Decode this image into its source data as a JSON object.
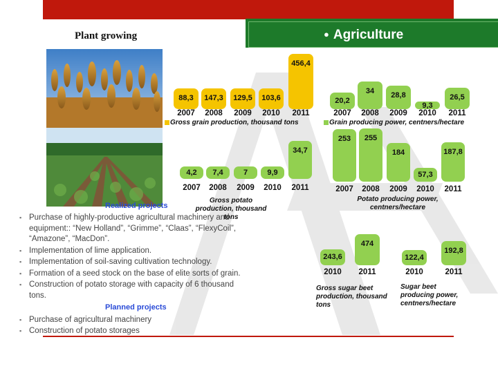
{
  "header": {
    "section_title": "Agriculture",
    "plant_title": "Plant growing",
    "bullet_icon": "●"
  },
  "colors": {
    "header_red": "#c0180c",
    "header_green": "#1d7a2a",
    "yellow_bar": "#f5c400",
    "green_bar": "#92d050",
    "link_blue": "#2a4bd7"
  },
  "chart_data": [
    {
      "id": "grain_gross",
      "type": "bar",
      "categories": [
        "2007",
        "2008",
        "2009",
        "2010",
        "2011"
      ],
      "values": [
        88.3,
        147.3,
        129.5,
        103.6,
        456.4
      ],
      "value_labels": [
        "88,3",
        "147,3",
        "129,5",
        "103,6",
        "456,4"
      ],
      "caption": "Gross grain production, thousand tons",
      "color": "#f5c400"
    },
    {
      "id": "grain_yield",
      "type": "bar",
      "categories": [
        "2007",
        "2008",
        "2009",
        "2010",
        "2011"
      ],
      "values": [
        20.2,
        34,
        28.8,
        9.3,
        26.5
      ],
      "value_labels": [
        "20,2",
        "34",
        "28,8",
        "9,3",
        "26,5"
      ],
      "caption": "Grain producing power, centners/hectare",
      "color": "#92d050"
    },
    {
      "id": "potato_gross",
      "type": "bar",
      "categories": [
        "2007",
        "2008",
        "2009",
        "2010",
        "2011"
      ],
      "values": [
        4.2,
        7.4,
        7,
        9.9,
        34.7
      ],
      "value_labels": [
        "4,2",
        "7,4",
        "7",
        "9,9",
        "34,7"
      ],
      "caption": "Gross potato production, thousand tons",
      "color": "#92d050"
    },
    {
      "id": "potato_yield",
      "type": "bar",
      "categories": [
        "2007",
        "2008",
        "2009",
        "2010",
        "2011"
      ],
      "values": [
        253,
        255,
        184,
        57.3,
        187.8
      ],
      "value_labels": [
        "253",
        "255",
        "184",
        "57,3",
        "187,8"
      ],
      "caption": "Potato producing power, centners/hectare",
      "color": "#92d050"
    },
    {
      "id": "sugarbeet_gross",
      "type": "bar",
      "categories": [
        "2010",
        "2011"
      ],
      "values": [
        243.6,
        474
      ],
      "value_labels": [
        "243,6",
        "474"
      ],
      "caption": "Gross sugar beet production, thousand tons",
      "color": "#92d050"
    },
    {
      "id": "sugarbeet_yield",
      "type": "bar",
      "categories": [
        "2010",
        "2011"
      ],
      "values": [
        122.4,
        192.8
      ],
      "value_labels": [
        "122,4",
        "192,8"
      ],
      "caption": "Sugar beet producing power, centners/hectare",
      "color": "#92d050"
    }
  ],
  "realized": {
    "heading": "Realized projects",
    "items": [
      "Purchase of highly-productive agricultural machinery and equipment:: “New Holland”, “Grimme”, “Claas”, “FlexyCoil”, “Amazone”, “MacDon”.",
      "Implementation of lime application.",
      "Implementation of soil-saving  cultivation technology.",
      "Formation  of a seed stock on the base of elite sorts of grain.",
      "Construction of potato storage with capacity of 6 thousand tons."
    ]
  },
  "planned": {
    "heading": "Planned projects",
    "items": [
      "Purchase of agricultural machinery",
      "Construction of potato storages"
    ]
  }
}
